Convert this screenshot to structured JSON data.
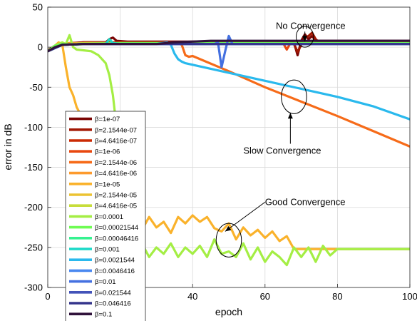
{
  "chart_data": {
    "type": "line",
    "title": "",
    "xlabel": "epoch",
    "ylabel": "error in dB",
    "xlim": [
      0,
      100
    ],
    "ylim": [
      -300,
      50
    ],
    "xticks": [
      0,
      20,
      40,
      60,
      80,
      100
    ],
    "yticks": [
      50,
      0,
      -50,
      -100,
      -150,
      -200,
      -250,
      -300
    ],
    "grid": true,
    "legend_position": "left, lower-middle",
    "legend_prefix": "β=",
    "series": [
      {
        "name": "1e-07",
        "color": "#7a0403",
        "x": [
          0,
          2,
          4,
          6,
          10,
          16,
          17,
          18,
          19,
          22,
          30,
          40,
          50,
          60,
          66,
          68,
          69,
          70,
          71,
          72,
          73,
          74,
          80,
          90,
          100
        ],
        "y": [
          -4,
          2,
          4,
          5,
          6,
          6,
          10,
          12,
          8,
          7,
          7,
          7,
          7,
          7,
          7,
          6,
          -10,
          8,
          16,
          10,
          14,
          8,
          8,
          8,
          8
        ]
      },
      {
        "name": "2.1544e-07",
        "color": "#a21703",
        "x": [
          0,
          2,
          4,
          10,
          20,
          30,
          40,
          50,
          60,
          68,
          69,
          70,
          71,
          72,
          73,
          74,
          75,
          80,
          90,
          100
        ],
        "y": [
          -5,
          1,
          4,
          6,
          6,
          6,
          6,
          6,
          6,
          4,
          -6,
          3,
          12,
          14,
          18,
          10,
          6,
          6,
          6,
          6
        ]
      },
      {
        "name": "4.6416e-07",
        "color": "#cb2a04",
        "x": [
          0,
          4,
          10,
          20,
          30,
          40,
          50,
          60,
          70,
          80,
          90,
          100
        ],
        "y": [
          -5,
          3,
          5,
          5,
          5,
          5,
          5,
          5,
          5,
          5,
          5,
          5
        ]
      },
      {
        "name": "1e-06",
        "color": "#e8480f",
        "x": [
          0,
          4,
          10,
          20,
          30,
          40,
          50,
          60,
          65,
          66,
          67,
          70,
          80,
          90,
          100
        ],
        "y": [
          -5,
          3,
          5,
          5,
          5,
          5,
          5,
          5,
          5,
          -3,
          5,
          5,
          5,
          5,
          5
        ]
      },
      {
        "name": "2.1544e-06",
        "color": "#f66b19",
        "x": [
          0,
          4,
          10,
          20,
          30,
          36,
          37,
          38,
          39,
          40,
          50,
          60,
          70,
          80,
          90,
          100
        ],
        "y": [
          -5,
          3,
          5,
          5,
          5,
          5,
          3,
          -10,
          -12,
          -11,
          -30,
          -50,
          -68,
          -86,
          -105,
          -124
        ]
      },
      {
        "name": "4.6416e-06",
        "color": "#fd9a2d",
        "x": [
          0,
          2,
          4,
          6,
          10,
          20,
          30,
          40,
          50,
          60,
          70,
          80,
          90,
          100
        ],
        "y": [
          -5,
          2,
          4,
          5,
          5,
          5,
          5,
          5,
          5,
          5,
          5,
          5,
          5,
          5
        ]
      },
      {
        "name": "1e-05",
        "color": "#fab22b",
        "x": [
          0,
          2,
          3,
          4,
          5,
          6,
          7,
          8,
          10,
          13,
          16,
          18,
          19,
          20,
          20.5,
          21,
          22,
          24,
          26,
          28,
          30,
          32,
          34,
          36,
          38,
          40,
          42,
          44,
          46,
          48,
          50,
          52,
          54,
          56,
          58,
          60,
          62,
          64,
          66,
          68,
          70,
          80,
          90,
          100
        ],
        "y": [
          -5,
          2,
          6,
          4,
          -25,
          -50,
          -60,
          -75,
          -92,
          -115,
          -135,
          -160,
          -175,
          -185,
          -200,
          -230,
          -245,
          -215,
          -228,
          -212,
          -225,
          -218,
          -232,
          -212,
          -220,
          -210,
          -218,
          -212,
          -226,
          -230,
          -220,
          -240,
          -225,
          -235,
          -228,
          -238,
          -230,
          -242,
          -236,
          -252,
          -252,
          -252,
          -252,
          -252
        ]
      },
      {
        "name": "2.1544e-05",
        "color": "#ecc332",
        "x": [
          0,
          4,
          10,
          20,
          30,
          40,
          50,
          60,
          70,
          80,
          90,
          100
        ],
        "y": [
          -5,
          3,
          5,
          5,
          5,
          5,
          5,
          5,
          5,
          5,
          5,
          5
        ]
      },
      {
        "name": "4.6416e-05",
        "color": "#c7dd3a",
        "x": [
          0,
          4,
          10,
          20,
          30,
          40,
          50,
          60,
          70,
          80,
          90,
          100
        ],
        "y": [
          -5,
          3,
          5,
          5,
          5,
          5,
          5,
          5,
          5,
          5,
          5,
          5
        ]
      },
      {
        "name": "0.0001",
        "color": "#a4ee44",
        "x": [
          0,
          2,
          4,
          5,
          6,
          7,
          8,
          10,
          12,
          14,
          16,
          17,
          18,
          19,
          20,
          21,
          22,
          23,
          24,
          26,
          28,
          30,
          32,
          34,
          36,
          38,
          40,
          42,
          44,
          46,
          48,
          50,
          52,
          54,
          56,
          58,
          60,
          62,
          64,
          66,
          68,
          70,
          72,
          74,
          76,
          78,
          80,
          90,
          100
        ],
        "y": [
          -5,
          2,
          6,
          4,
          15,
          0,
          -3,
          -4,
          -5,
          -10,
          -20,
          -35,
          -60,
          -100,
          -160,
          -200,
          -235,
          -248,
          -255,
          -245,
          -262,
          -250,
          -258,
          -245,
          -262,
          -250,
          -258,
          -248,
          -262,
          -240,
          -258,
          -255,
          -262,
          -245,
          -265,
          -250,
          -268,
          -255,
          -262,
          -272,
          -250,
          -262,
          -250,
          -268,
          -248,
          -260,
          -252,
          -252,
          -252
        ]
      },
      {
        "name": "0.00021544",
        "color": "#6ffc53",
        "x": [
          0,
          2,
          4,
          8,
          10,
          20,
          30,
          40,
          50,
          60,
          70,
          80,
          90,
          100
        ],
        "y": [
          -5,
          2,
          4,
          3,
          4,
          5,
          5,
          5,
          5,
          5,
          5,
          5,
          5,
          5
        ]
      },
      {
        "name": "0.00046416",
        "color": "#36f290",
        "x": [
          0,
          4,
          10,
          20,
          30,
          40,
          50,
          60,
          70,
          80,
          90,
          100
        ],
        "y": [
          -5,
          3,
          4,
          4,
          4,
          4,
          4,
          4,
          4,
          4,
          4,
          4
        ]
      },
      {
        "name": "0.001",
        "color": "#1ad9c7",
        "x": [
          0,
          4,
          10,
          16,
          17,
          18,
          20,
          30,
          40,
          50,
          60,
          70,
          80,
          90,
          100
        ],
        "y": [
          -5,
          3,
          4,
          4,
          10,
          5,
          4,
          4,
          4,
          4,
          4,
          4,
          4,
          4,
          4
        ]
      },
      {
        "name": "0.0021544",
        "color": "#2ab9ed",
        "x": [
          0,
          4,
          10,
          20,
          30,
          33,
          34,
          35,
          36,
          37,
          38,
          40,
          50,
          60,
          70,
          80,
          90,
          100
        ],
        "y": [
          -5,
          3,
          4,
          4,
          4,
          6,
          3,
          -8,
          -15,
          -18,
          -20,
          -22,
          -32,
          -42,
          -52,
          -62,
          -74,
          -90
        ]
      },
      {
        "name": "0.0046416",
        "color": "#4a88f0",
        "x": [
          0,
          4,
          10,
          20,
          30,
          40,
          50,
          60,
          70,
          80,
          90,
          100
        ],
        "y": [
          -5,
          3,
          4,
          4,
          4,
          4,
          4,
          4,
          4,
          4,
          4,
          4
        ]
      },
      {
        "name": "0.01",
        "color": "#4470e0",
        "x": [
          0,
          4,
          10,
          20,
          30,
          40,
          46,
          47,
          48,
          49,
          50,
          51,
          52,
          60,
          70,
          80,
          90,
          100
        ],
        "y": [
          -5,
          3,
          4,
          4,
          4,
          4,
          4,
          6,
          -25,
          -5,
          14,
          4,
          4,
          4,
          4,
          4,
          4,
          4
        ]
      },
      {
        "name": "0.021544",
        "color": "#4353b9",
        "x": [
          0,
          4,
          10,
          20,
          30,
          40,
          50,
          60,
          70,
          80,
          90,
          100
        ],
        "y": [
          -5,
          3,
          4,
          4,
          4,
          4,
          4,
          4,
          4,
          4,
          4,
          4
        ]
      },
      {
        "name": "0.046416",
        "color": "#35358c",
        "x": [
          0,
          4,
          10,
          20,
          30,
          40,
          50,
          60,
          70,
          80,
          90,
          100
        ],
        "y": [
          -5,
          3,
          4,
          4,
          4,
          4,
          4,
          4,
          4,
          4,
          4,
          4
        ]
      },
      {
        "name": "0.1",
        "color": "#30123b",
        "x": [
          0,
          2,
          4,
          10,
          20,
          30,
          35,
          40,
          45,
          50,
          60,
          70,
          80,
          90,
          100
        ],
        "y": [
          -5,
          0,
          3,
          4,
          4,
          4,
          6,
          7,
          8,
          8,
          8,
          8,
          8,
          8,
          8
        ]
      }
    ],
    "annotations": [
      {
        "text": "No Convergence",
        "x": 63,
        "y": 23,
        "target_x": 71,
        "target_y": 7
      },
      {
        "text": "Slow Convergence",
        "x": 54,
        "y": -133,
        "target_x": 67,
        "target_y": -82
      },
      {
        "text": "Good Convergence",
        "x": 60,
        "y": -197,
        "target_x": 49,
        "target_y": -230
      }
    ],
    "ellipses": [
      {
        "cx": 71,
        "cy": 13,
        "rx": 2.4,
        "ry": 13
      },
      {
        "cx": 68,
        "cy": -62,
        "rx": 3.5,
        "ry": 21
      },
      {
        "cx": 50,
        "cy": -241,
        "rx": 3.5,
        "ry": 21
      }
    ]
  }
}
